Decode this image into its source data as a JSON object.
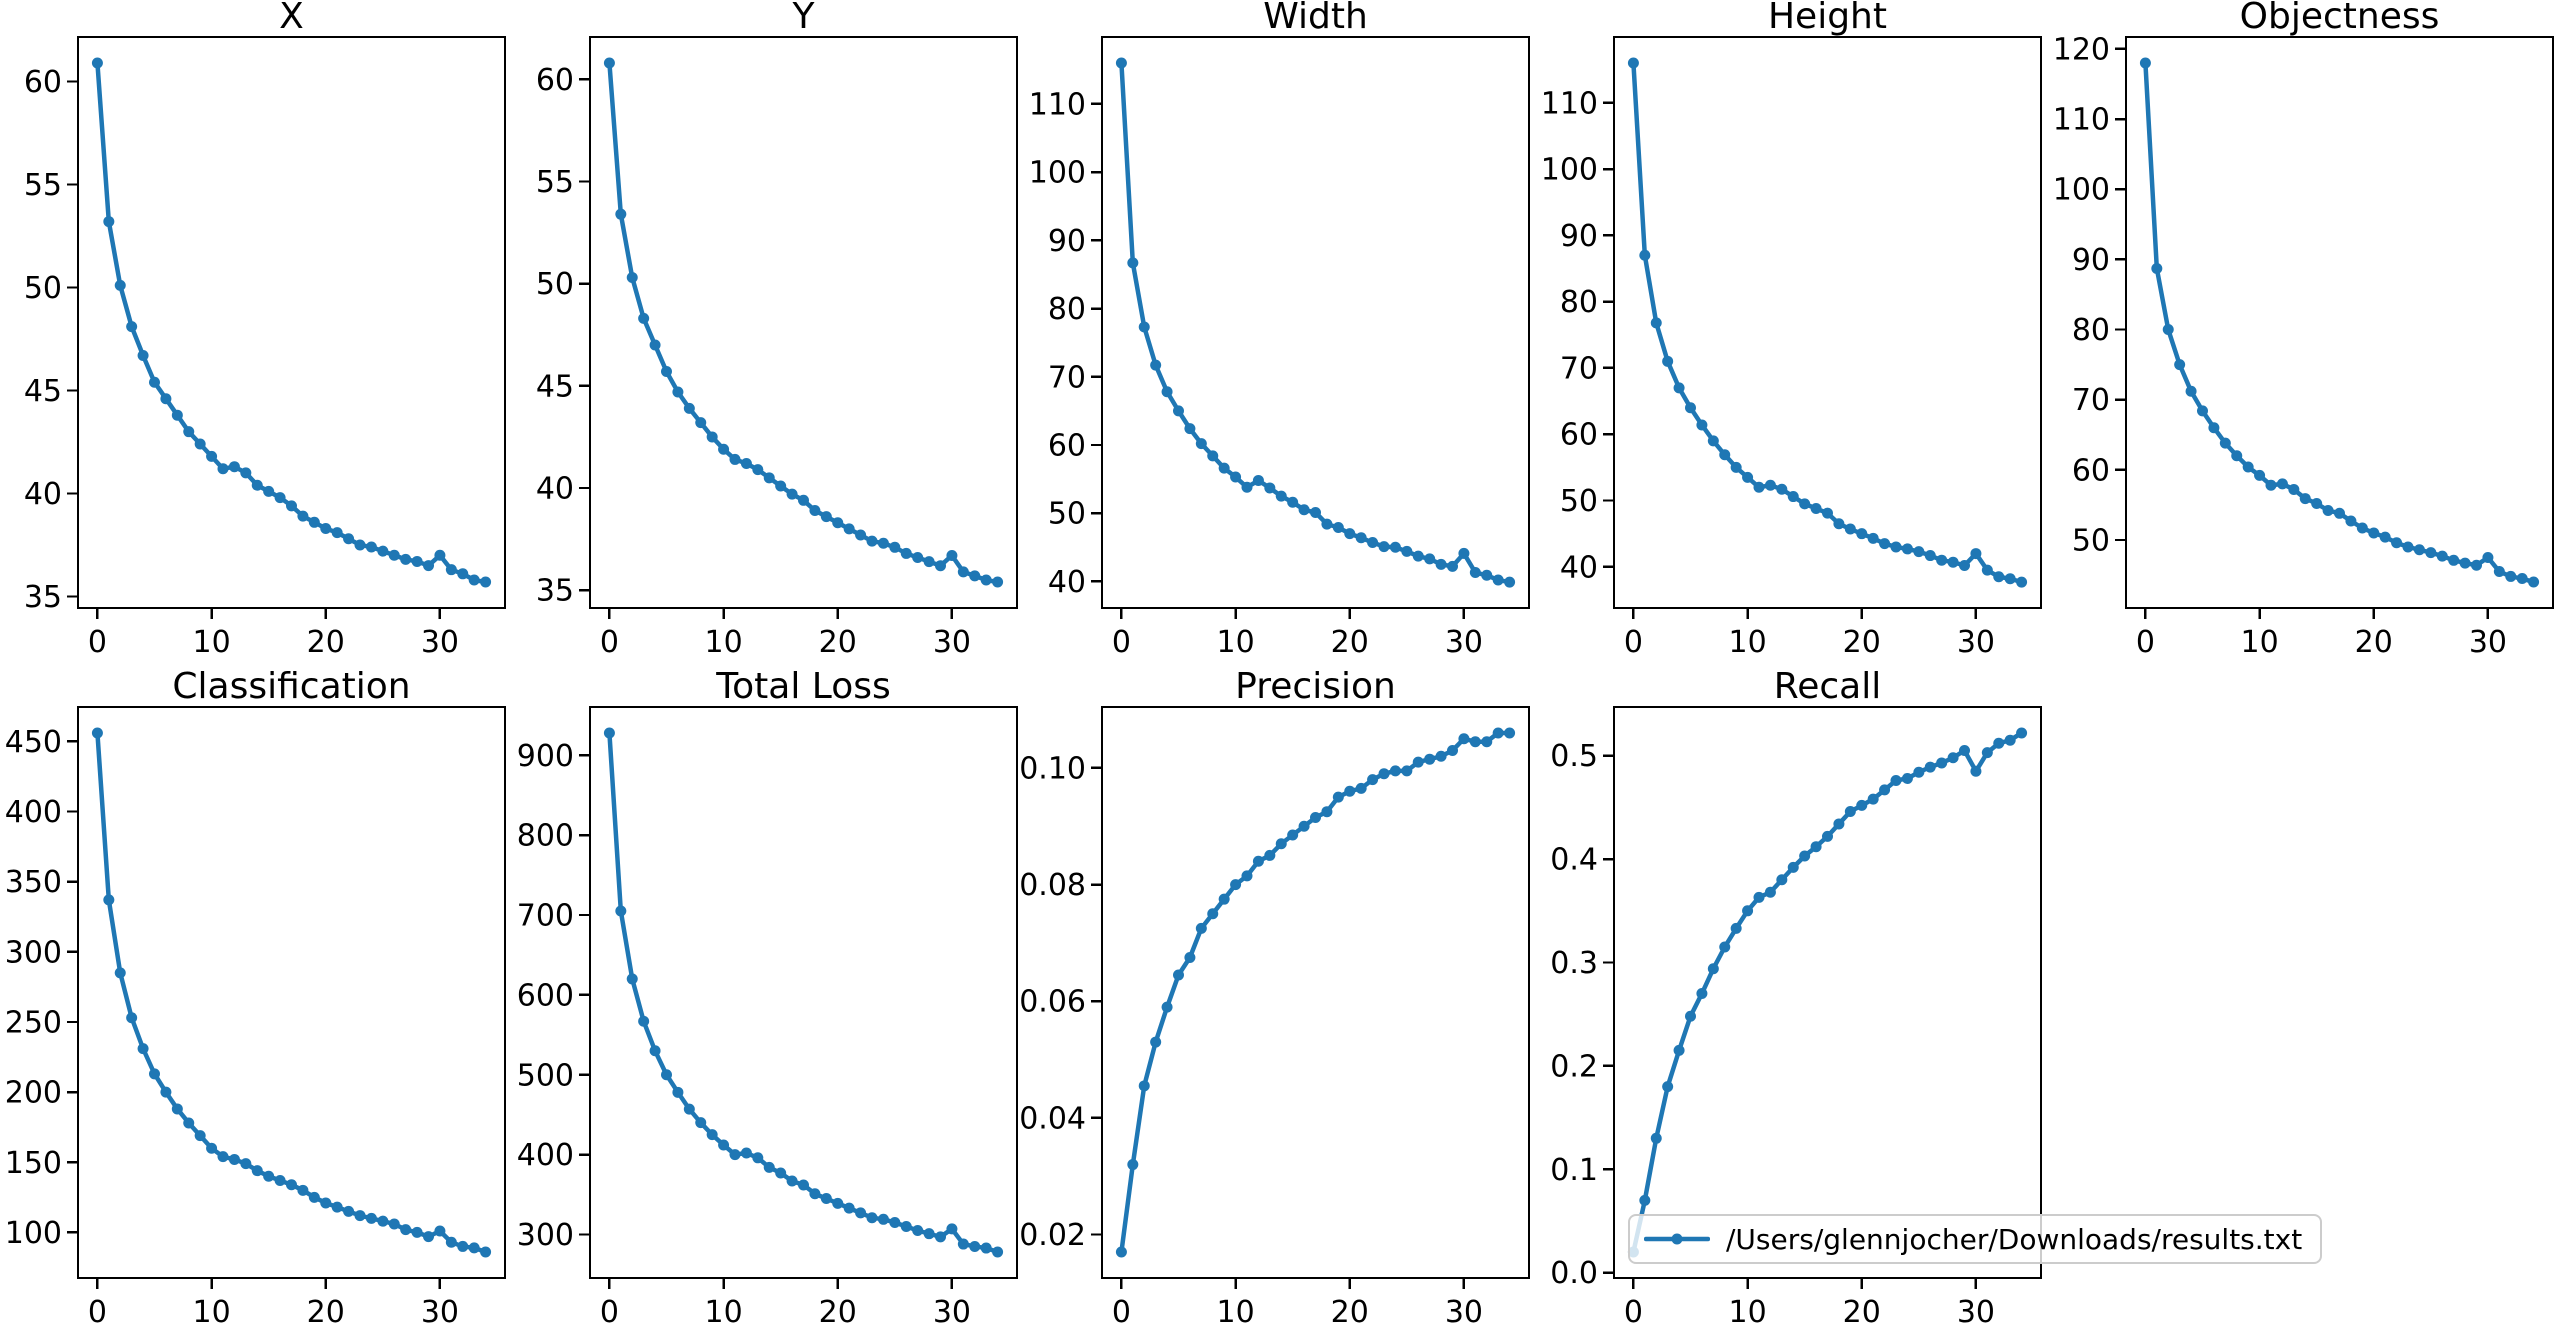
{
  "figure": {
    "background": "#ffffff",
    "line_color": "#1f77b4",
    "axes_color": "#000000",
    "legend": {
      "label": "/Users/glennjocher/Downloads/results.txt"
    }
  },
  "epochs": [
    0,
    1,
    2,
    3,
    4,
    5,
    6,
    7,
    8,
    9,
    10,
    11,
    12,
    13,
    14,
    15,
    16,
    17,
    18,
    19,
    20,
    21,
    22,
    23,
    24,
    25,
    26,
    27,
    28,
    29,
    30,
    31,
    32,
    33,
    34
  ],
  "chart_data": [
    {
      "type": "line",
      "title": "X",
      "values": [
        60.9,
        53.2,
        50.1,
        48.1,
        46.7,
        45.4,
        44.6,
        43.8,
        43.0,
        42.4,
        41.8,
        41.2,
        41.3,
        41.0,
        40.4,
        40.1,
        39.8,
        39.4,
        38.9,
        38.6,
        38.3,
        38.1,
        37.8,
        37.5,
        37.4,
        37.2,
        37.0,
        36.8,
        36.7,
        36.5,
        37.0,
        36.3,
        36.1,
        35.8,
        35.7
      ],
      "ylim": [
        34.44,
        62.16
      ],
      "yticks": [
        35,
        40,
        45,
        50,
        55,
        60
      ],
      "ytick_labels": [
        "35",
        "40",
        "45",
        "50",
        "55",
        "60"
      ],
      "xlim": [
        -1.7,
        35.7
      ],
      "xticks": [
        0,
        10,
        20,
        30
      ],
      "xtick_labels": [
        "0",
        "10",
        "20",
        "30"
      ],
      "grid": false
    },
    {
      "type": "line",
      "title": "Y",
      "values": [
        60.8,
        53.4,
        50.3,
        48.3,
        47.0,
        45.7,
        44.7,
        43.9,
        43.2,
        42.5,
        41.9,
        41.4,
        41.2,
        40.9,
        40.5,
        40.1,
        39.7,
        39.4,
        38.9,
        38.6,
        38.3,
        38.0,
        37.7,
        37.4,
        37.3,
        37.1,
        36.8,
        36.6,
        36.4,
        36.2,
        36.7,
        35.9,
        35.7,
        35.5,
        35.4
      ],
      "ylim": [
        34.13,
        62.07
      ],
      "yticks": [
        35,
        40,
        45,
        50,
        55,
        60
      ],
      "ytick_labels": [
        "35",
        "40",
        "45",
        "50",
        "55",
        "60"
      ],
      "xlim": [
        -1.7,
        35.7
      ],
      "xticks": [
        0,
        10,
        20,
        30
      ],
      "xtick_labels": [
        "0",
        "10",
        "20",
        "30"
      ],
      "grid": false
    },
    {
      "type": "line",
      "title": "Width",
      "values": [
        116.0,
        86.7,
        77.3,
        71.7,
        67.8,
        65.0,
        62.4,
        60.2,
        58.4,
        56.6,
        55.3,
        53.8,
        54.8,
        53.7,
        52.5,
        51.6,
        50.5,
        50.1,
        48.4,
        47.9,
        47.0,
        46.4,
        45.7,
        45.1,
        45.0,
        44.4,
        43.7,
        43.3,
        42.5,
        42.2,
        44.1,
        41.3,
        40.9,
        40.2,
        39.9
      ],
      "ylim": [
        36.1,
        119.81
      ],
      "yticks": [
        40,
        50,
        60,
        70,
        80,
        90,
        100,
        110
      ],
      "ytick_labels": [
        "40",
        "50",
        "60",
        "70",
        "80",
        "90",
        "100",
        "110"
      ],
      "xlim": [
        -1.7,
        35.7
      ],
      "xticks": [
        0,
        10,
        20,
        30
      ],
      "xtick_labels": [
        "0",
        "10",
        "20",
        "30"
      ],
      "grid": false
    },
    {
      "type": "line",
      "title": "Height",
      "values": [
        116.0,
        87.0,
        76.8,
        71.0,
        67.0,
        64.0,
        61.4,
        59.0,
        56.9,
        55.0,
        53.5,
        52.0,
        52.3,
        51.7,
        50.6,
        49.5,
        48.8,
        48.1,
        46.5,
        45.7,
        45.0,
        44.3,
        43.5,
        43.0,
        42.7,
        42.3,
        41.7,
        41.0,
        40.7,
        40.2,
        42.0,
        39.5,
        38.5,
        38.2,
        37.7
      ],
      "ylim": [
        33.79,
        119.92
      ],
      "yticks": [
        40,
        50,
        60,
        70,
        80,
        90,
        100,
        110
      ],
      "ytick_labels": [
        "40",
        "50",
        "60",
        "70",
        "80",
        "90",
        "100",
        "110"
      ],
      "xlim": [
        -1.7,
        35.7
      ],
      "xticks": [
        0,
        10,
        20,
        30
      ],
      "xtick_labels": [
        "0",
        "10",
        "20",
        "30"
      ],
      "grid": false
    },
    {
      "type": "line",
      "title": "Objectness",
      "values": [
        118.0,
        88.7,
        80.0,
        75.0,
        71.2,
        68.4,
        66.0,
        63.8,
        62.0,
        60.4,
        59.2,
        57.8,
        58.0,
        57.2,
        55.9,
        55.2,
        54.2,
        53.8,
        52.7,
        51.7,
        51.0,
        50.4,
        49.6,
        49.0,
        48.6,
        48.2,
        47.7,
        47.1,
        46.7,
        46.4,
        47.5,
        45.5,
        44.8,
        44.5,
        44.0
      ],
      "ylim": [
        40.3,
        121.7
      ],
      "yticks": [
        50,
        60,
        70,
        80,
        90,
        100,
        110,
        120
      ],
      "ytick_labels": [
        "50",
        "60",
        "70",
        "80",
        "90",
        "100",
        "110",
        "120"
      ],
      "xlim": [
        -1.7,
        35.7
      ],
      "xticks": [
        0,
        10,
        20,
        30
      ],
      "xtick_labels": [
        "0",
        "10",
        "20",
        "30"
      ],
      "grid": false
    },
    {
      "type": "line",
      "title": "Classification",
      "values": [
        456,
        337,
        285,
        253,
        231,
        213,
        200,
        188,
        178,
        169,
        160,
        154,
        152,
        149,
        144,
        140,
        137,
        134,
        130,
        125,
        121,
        118,
        115,
        112,
        110,
        108,
        106,
        102,
        100,
        97,
        101,
        93,
        90,
        89,
        86
      ],
      "ylim": [
        67.5,
        474.5
      ],
      "yticks": [
        100,
        150,
        200,
        250,
        300,
        350,
        400,
        450
      ],
      "ytick_labels": [
        "100",
        "150",
        "200",
        "250",
        "300",
        "350",
        "400",
        "450"
      ],
      "xlim": [
        -1.7,
        35.7
      ],
      "xticks": [
        0,
        10,
        20,
        30
      ],
      "xtick_labels": [
        "0",
        "10",
        "20",
        "30"
      ],
      "grid": false
    },
    {
      "type": "line",
      "title": "Total Loss",
      "values": [
        928,
        705,
        620,
        567,
        530,
        500,
        478,
        457,
        440,
        425,
        412,
        400,
        402,
        396,
        384,
        377,
        367,
        362,
        351,
        345,
        339,
        333,
        327,
        321,
        319,
        315,
        310,
        305,
        301,
        297,
        307,
        288,
        285,
        283,
        278
      ],
      "ylim": [
        245.5,
        960.5
      ],
      "yticks": [
        300,
        400,
        500,
        600,
        700,
        800,
        900
      ],
      "ytick_labels": [
        "300",
        "400",
        "500",
        "600",
        "700",
        "800",
        "900"
      ],
      "xlim": [
        -1.7,
        35.7
      ],
      "xticks": [
        0,
        10,
        20,
        30
      ],
      "xtick_labels": [
        "0",
        "10",
        "20",
        "30"
      ],
      "grid": false
    },
    {
      "type": "line",
      "title": "Precision",
      "values": [
        0.017,
        0.032,
        0.0455,
        0.053,
        0.059,
        0.0645,
        0.0675,
        0.0725,
        0.075,
        0.0775,
        0.08,
        0.0815,
        0.084,
        0.085,
        0.087,
        0.0885,
        0.09,
        0.0915,
        0.0925,
        0.095,
        0.096,
        0.0965,
        0.098,
        0.099,
        0.0995,
        0.0995,
        0.101,
        0.1015,
        0.102,
        0.103,
        0.105,
        0.1045,
        0.1045,
        0.106,
        0.106
      ],
      "ylim": [
        0.01255,
        0.11045
      ],
      "yticks": [
        0.02,
        0.04,
        0.06,
        0.08,
        0.1
      ],
      "ytick_labels": [
        "0.02",
        "0.04",
        "0.06",
        "0.08",
        "0.10"
      ],
      "xlim": [
        -1.7,
        35.7
      ],
      "xticks": [
        0,
        10,
        20,
        30
      ],
      "xtick_labels": [
        "0",
        "10",
        "20",
        "30"
      ],
      "grid": false
    },
    {
      "type": "line",
      "title": "Recall",
      "values": [
        0.02,
        0.07,
        0.13,
        0.18,
        0.215,
        0.248,
        0.27,
        0.294,
        0.315,
        0.333,
        0.35,
        0.363,
        0.368,
        0.38,
        0.392,
        0.403,
        0.412,
        0.422,
        0.434,
        0.446,
        0.452,
        0.458,
        0.467,
        0.476,
        0.478,
        0.484,
        0.489,
        0.493,
        0.498,
        0.505,
        0.485,
        0.503,
        0.512,
        0.515,
        0.522
      ],
      "ylim": [
        -0.0051,
        0.5471
      ],
      "yticks": [
        0.0,
        0.1,
        0.2,
        0.3,
        0.4,
        0.5
      ],
      "ytick_labels": [
        "0.0",
        "0.1",
        "0.2",
        "0.3",
        "0.4",
        "0.5"
      ],
      "xlim": [
        -1.7,
        35.7
      ],
      "xticks": [
        0,
        10,
        20,
        30
      ],
      "xtick_labels": [
        "0",
        "10",
        "20",
        "30"
      ],
      "grid": false
    }
  ]
}
